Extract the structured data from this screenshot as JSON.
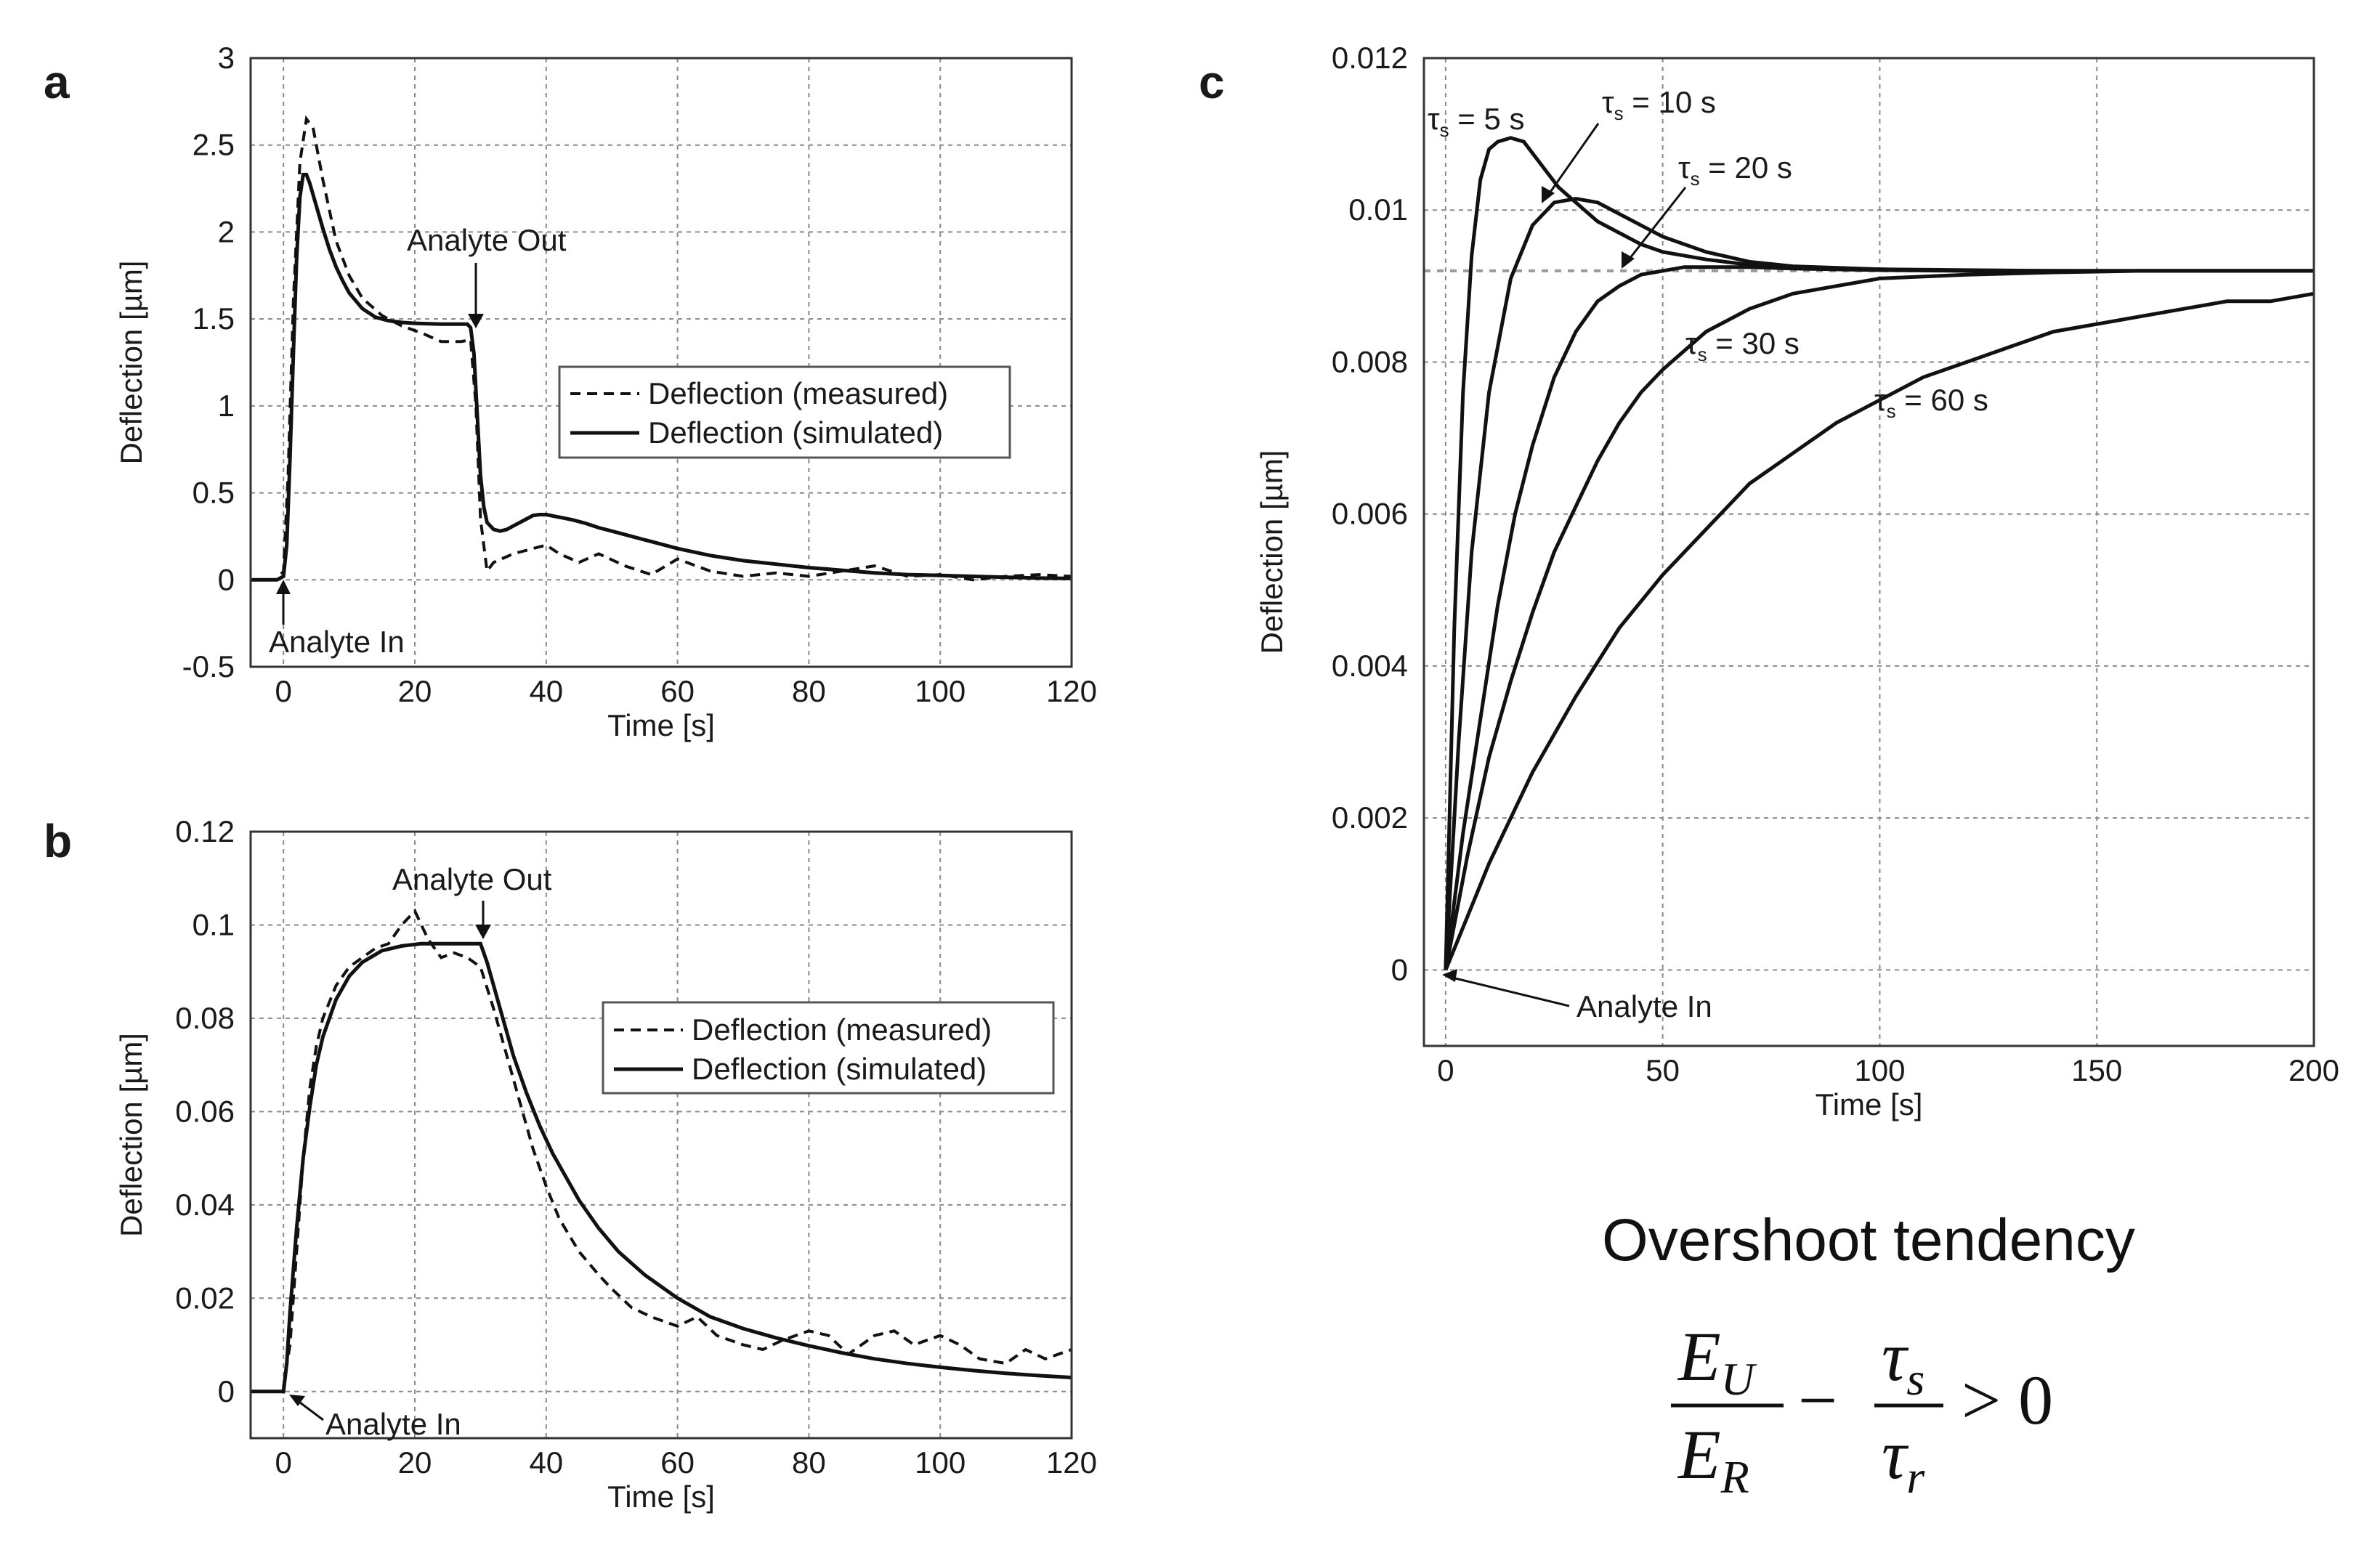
{
  "chart_data": [
    {
      "panel": "a",
      "type": "line",
      "xlabel": "Time [s]",
      "ylabel": "Deflection [µm]",
      "xlim": [
        -5,
        120
      ],
      "ylim": [
        -0.5,
        3
      ],
      "xticks": [
        0,
        20,
        40,
        60,
        80,
        100,
        120
      ],
      "yticks": [
        -0.5,
        0,
        0.5,
        1,
        1.5,
        2,
        2.5,
        3
      ],
      "grid": true,
      "legend": {
        "placement": "right-middle",
        "entries": [
          "Deflection (measured)",
          "Deflection (simulated)"
        ]
      },
      "annotations": [
        {
          "text": "Analyte In",
          "x": 0,
          "y": 0
        },
        {
          "text": "Analyte Out",
          "x": 29,
          "y": 1.47
        }
      ],
      "series": [
        {
          "name": "Deflection (measured)",
          "style": "dashed",
          "x": [
            -5,
            -1,
            0,
            0.7,
            1.5,
            2.5,
            3.5,
            4.5,
            6,
            8,
            10,
            12,
            15,
            18,
            21,
            24,
            27,
            28.5,
            29.3,
            30,
            31,
            32,
            35,
            38,
            40,
            42,
            45,
            48,
            52,
            56,
            60,
            65,
            70,
            75,
            80,
            85,
            90,
            95,
            100,
            105,
            110,
            115,
            120
          ],
          "y": [
            0,
            0,
            0.05,
            0.6,
            1.6,
            2.4,
            2.65,
            2.6,
            2.3,
            1.95,
            1.75,
            1.62,
            1.52,
            1.46,
            1.42,
            1.37,
            1.37,
            1.38,
            1.0,
            0.35,
            0.05,
            0.1,
            0.15,
            0.18,
            0.2,
            0.15,
            0.1,
            0.15,
            0.08,
            0.03,
            0.12,
            0.05,
            0.02,
            0.04,
            0.02,
            0.05,
            0.08,
            0.02,
            0.03,
            0.0,
            0.02,
            0.03,
            0.02
          ]
        },
        {
          "name": "Deflection (simulated)",
          "style": "solid",
          "x": [
            -5,
            -1,
            0,
            0.5,
            1,
            1.5,
            2,
            2.5,
            3,
            3.5,
            4,
            5,
            6,
            7,
            8,
            9,
            10,
            12,
            14,
            16,
            18,
            20,
            24,
            28,
            28.5,
            29,
            29.5,
            30,
            30.5,
            31,
            32,
            33,
            34,
            35,
            36,
            37,
            38,
            39,
            40,
            42,
            44,
            46,
            48,
            50,
            53,
            56,
            60,
            65,
            70,
            75,
            80,
            85,
            90,
            95,
            100,
            105,
            110,
            115,
            120
          ],
          "y": [
            0,
            0,
            0.02,
            0.2,
            0.7,
            1.3,
            1.85,
            2.2,
            2.33,
            2.33,
            2.28,
            2.15,
            2.02,
            1.9,
            1.8,
            1.72,
            1.65,
            1.56,
            1.51,
            1.49,
            1.48,
            1.475,
            1.47,
            1.47,
            1.45,
            1.3,
            0.95,
            0.6,
            0.42,
            0.33,
            0.29,
            0.28,
            0.29,
            0.31,
            0.33,
            0.35,
            0.37,
            0.375,
            0.375,
            0.36,
            0.345,
            0.325,
            0.3,
            0.28,
            0.25,
            0.22,
            0.18,
            0.14,
            0.11,
            0.09,
            0.07,
            0.055,
            0.04,
            0.03,
            0.025,
            0.02,
            0.015,
            0.01,
            0.008
          ]
        }
      ]
    },
    {
      "panel": "b",
      "type": "line",
      "xlabel": "Time [s]",
      "ylabel": "Deflection [µm]",
      "xlim": [
        -5,
        120
      ],
      "ylim": [
        -0.01,
        0.12
      ],
      "xticks": [
        0,
        20,
        40,
        60,
        80,
        100,
        120
      ],
      "yticks": [
        0,
        0.02,
        0.04,
        0.06,
        0.08,
        0.1,
        0.12
      ],
      "grid": true,
      "legend": {
        "placement": "right-middle",
        "entries": [
          "Deflection (measured)",
          "Deflection (simulated)"
        ]
      },
      "annotations": [
        {
          "text": "Analyte In",
          "x": 0,
          "y": 0
        },
        {
          "text": "Analyte Out",
          "x": 30,
          "y": 0.096
        }
      ],
      "series": [
        {
          "name": "Deflection (measured)",
          "style": "dashed",
          "x": [
            -5,
            -1,
            0,
            1,
            2,
            3,
            4,
            5,
            6,
            8,
            10,
            12,
            14,
            16,
            18,
            20,
            22,
            24,
            26,
            28,
            30,
            32,
            34,
            36,
            38,
            40,
            42,
            45,
            48,
            50,
            53,
            56,
            60,
            63,
            66,
            70,
            73,
            76,
            80,
            83,
            86,
            90,
            93,
            96,
            100,
            103,
            106,
            110,
            113,
            116,
            120
          ],
          "y": [
            0,
            0,
            0.001,
            0.01,
            0.03,
            0.05,
            0.065,
            0.074,
            0.08,
            0.087,
            0.091,
            0.093,
            0.095,
            0.096,
            0.1,
            0.103,
            0.097,
            0.093,
            0.094,
            0.093,
            0.091,
            0.082,
            0.072,
            0.062,
            0.052,
            0.044,
            0.037,
            0.03,
            0.025,
            0.022,
            0.018,
            0.016,
            0.014,
            0.016,
            0.012,
            0.01,
            0.009,
            0.011,
            0.013,
            0.012,
            0.008,
            0.012,
            0.013,
            0.01,
            0.012,
            0.01,
            0.007,
            0.006,
            0.009,
            0.007,
            0.009
          ]
        },
        {
          "name": "Deflection (simulated)",
          "style": "solid",
          "x": [
            -5,
            -1,
            0,
            0.5,
            1,
            2,
            3,
            4,
            5,
            6,
            8,
            10,
            12,
            15,
            18,
            21,
            24,
            27,
            30,
            31,
            32,
            33,
            34,
            35,
            37,
            39,
            41,
            43,
            45,
            48,
            51,
            55,
            60,
            65,
            70,
            75,
            80,
            85,
            90,
            95,
            100,
            105,
            110,
            115,
            120
          ],
          "y": [
            0,
            0,
            0.0,
            0.006,
            0.017,
            0.035,
            0.05,
            0.061,
            0.07,
            0.076,
            0.084,
            0.089,
            0.092,
            0.0945,
            0.0955,
            0.096,
            0.096,
            0.096,
            0.096,
            0.092,
            0.087,
            0.082,
            0.077,
            0.072,
            0.064,
            0.057,
            0.051,
            0.046,
            0.041,
            0.035,
            0.03,
            0.025,
            0.02,
            0.016,
            0.0135,
            0.0115,
            0.0098,
            0.0083,
            0.007,
            0.006,
            0.0052,
            0.0045,
            0.0039,
            0.0034,
            0.003
          ]
        }
      ]
    },
    {
      "panel": "c",
      "type": "line",
      "xlabel": "Time [s]",
      "ylabel": "Deflection [µm]",
      "xlim": [
        -5,
        200
      ],
      "ylim": [
        -0.001,
        0.012
      ],
      "xticks": [
        0,
        50,
        100,
        150,
        200
      ],
      "yticks": [
        0,
        0.002,
        0.004,
        0.006,
        0.008,
        0.01,
        0.012
      ],
      "grid": true,
      "steady_state": 0.0092,
      "annotations": [
        {
          "text": "Analyte In",
          "x": 0,
          "y": 0
        }
      ],
      "series": [
        {
          "name": "τs = 5 s",
          "label_main": "τ",
          "label_sub": "s",
          "label_rest": " = 5 s",
          "x": [
            0,
            2,
            4,
            6,
            8,
            10,
            12,
            15,
            18,
            22,
            26,
            30,
            35,
            40,
            45,
            50,
            60,
            70,
            80,
            100,
            120,
            140,
            160,
            180,
            200
          ],
          "y": [
            0,
            0.0045,
            0.0076,
            0.0094,
            0.0104,
            0.0108,
            0.0109,
            0.01095,
            0.0109,
            0.0106,
            0.0103,
            0.0101,
            0.00985,
            0.0097,
            0.00955,
            0.00945,
            0.00935,
            0.00928,
            0.00925,
            0.00922,
            0.00921,
            0.0092,
            0.0092,
            0.0092,
            0.0092
          ]
        },
        {
          "name": "τs = 10 s",
          "label_main": "τ",
          "label_sub": "s",
          "label_rest": " = 10 s",
          "x": [
            0,
            3,
            6,
            10,
            15,
            20,
            25,
            30,
            35,
            40,
            45,
            50,
            60,
            70,
            80,
            100,
            120,
            140,
            160,
            180,
            200
          ],
          "y": [
            0,
            0.003,
            0.0055,
            0.0076,
            0.0091,
            0.0098,
            0.0101,
            0.01015,
            0.0101,
            0.00995,
            0.0098,
            0.00965,
            0.00945,
            0.00932,
            0.00926,
            0.00922,
            0.0092,
            0.0092,
            0.0092,
            0.0092,
            0.0092
          ]
        },
        {
          "name": "τs = 20 s",
          "label_main": "τ",
          "label_sub": "s",
          "label_rest": " = 20 s",
          "x": [
            0,
            4,
            8,
            12,
            16,
            20,
            25,
            30,
            35,
            40,
            45,
            50,
            55,
            60,
            70,
            80,
            100,
            120,
            140,
            160,
            180,
            200
          ],
          "y": [
            0,
            0.0018,
            0.0033,
            0.0048,
            0.006,
            0.0069,
            0.0078,
            0.0084,
            0.0088,
            0.009,
            0.00915,
            0.0092,
            0.00925,
            0.00925,
            0.00925,
            0.00923,
            0.00921,
            0.0092,
            0.0092,
            0.0092,
            0.0092,
            0.0092
          ]
        },
        {
          "name": "τs = 30 s",
          "label_main": "τ",
          "label_sub": "s",
          "label_rest": " = 30 s",
          "x": [
            0,
            5,
            10,
            15,
            20,
            25,
            30,
            35,
            40,
            45,
            50,
            60,
            70,
            80,
            90,
            100,
            120,
            140,
            160,
            180,
            200
          ],
          "y": [
            0,
            0.0015,
            0.0028,
            0.0038,
            0.0047,
            0.0055,
            0.0061,
            0.0067,
            0.0072,
            0.0076,
            0.0079,
            0.0084,
            0.0087,
            0.0089,
            0.009,
            0.0091,
            0.00915,
            0.00918,
            0.0092,
            0.0092,
            0.0092
          ]
        },
        {
          "name": "τs = 60 s",
          "label_main": "τ",
          "label_sub": "s",
          "label_rest": " = 60 s",
          "x": [
            0,
            5,
            10,
            15,
            20,
            30,
            40,
            50,
            60,
            70,
            80,
            90,
            100,
            110,
            120,
            130,
            140,
            150,
            160,
            170,
            180,
            190,
            200
          ],
          "y": [
            0,
            0.0007,
            0.0014,
            0.002,
            0.0026,
            0.0036,
            0.0045,
            0.0052,
            0.0058,
            0.0064,
            0.0068,
            0.0072,
            0.0075,
            0.0078,
            0.008,
            0.0082,
            0.0084,
            0.0085,
            0.0086,
            0.0087,
            0.0088,
            0.0088,
            0.0089
          ]
        }
      ]
    }
  ],
  "caption": {
    "title": "Overshoot tendency",
    "formula": {
      "num1": "E",
      "num1_sub": "U",
      "den1": "E",
      "den1_sub": "R",
      "minus": "−",
      "num2": "τ",
      "num2_sub": "s",
      "den2": "τ",
      "den2_sub": "r",
      "relation": "> 0"
    }
  }
}
